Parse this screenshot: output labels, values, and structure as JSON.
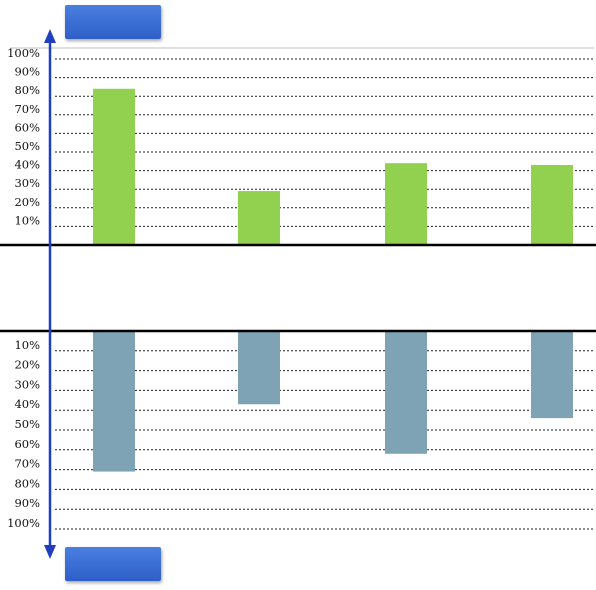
{
  "colors": {
    "top_bar": "#92d050",
    "bottom_bar": "#7da3b5",
    "arrow": "#1f3fbf",
    "button": "#3568d4"
  },
  "buttons": {
    "top": {
      "icon": "blank-blue-button"
    },
    "bottom": {
      "icon": "blank-blue-button"
    }
  },
  "chart_data": [
    {
      "type": "bar",
      "orientation": "up",
      "tick_labels": [
        "10%",
        "20%",
        "30%",
        "40%",
        "50%",
        "60%",
        "70%",
        "80%",
        "90%",
        "100%"
      ],
      "ylim": [
        0,
        100
      ],
      "grid": true,
      "categories": [
        "",
        "",
        "",
        ""
      ],
      "values": [
        84,
        29,
        44,
        43
      ]
    },
    {
      "type": "bar",
      "orientation": "down",
      "tick_labels": [
        "10%",
        "20%",
        "30%",
        "40%",
        "50%",
        "60%",
        "70%",
        "80%",
        "90%",
        "100%"
      ],
      "ylim": [
        0,
        100
      ],
      "grid": true,
      "categories": [
        "",
        "",
        "",
        ""
      ],
      "values": [
        71,
        37,
        62,
        44
      ]
    }
  ]
}
